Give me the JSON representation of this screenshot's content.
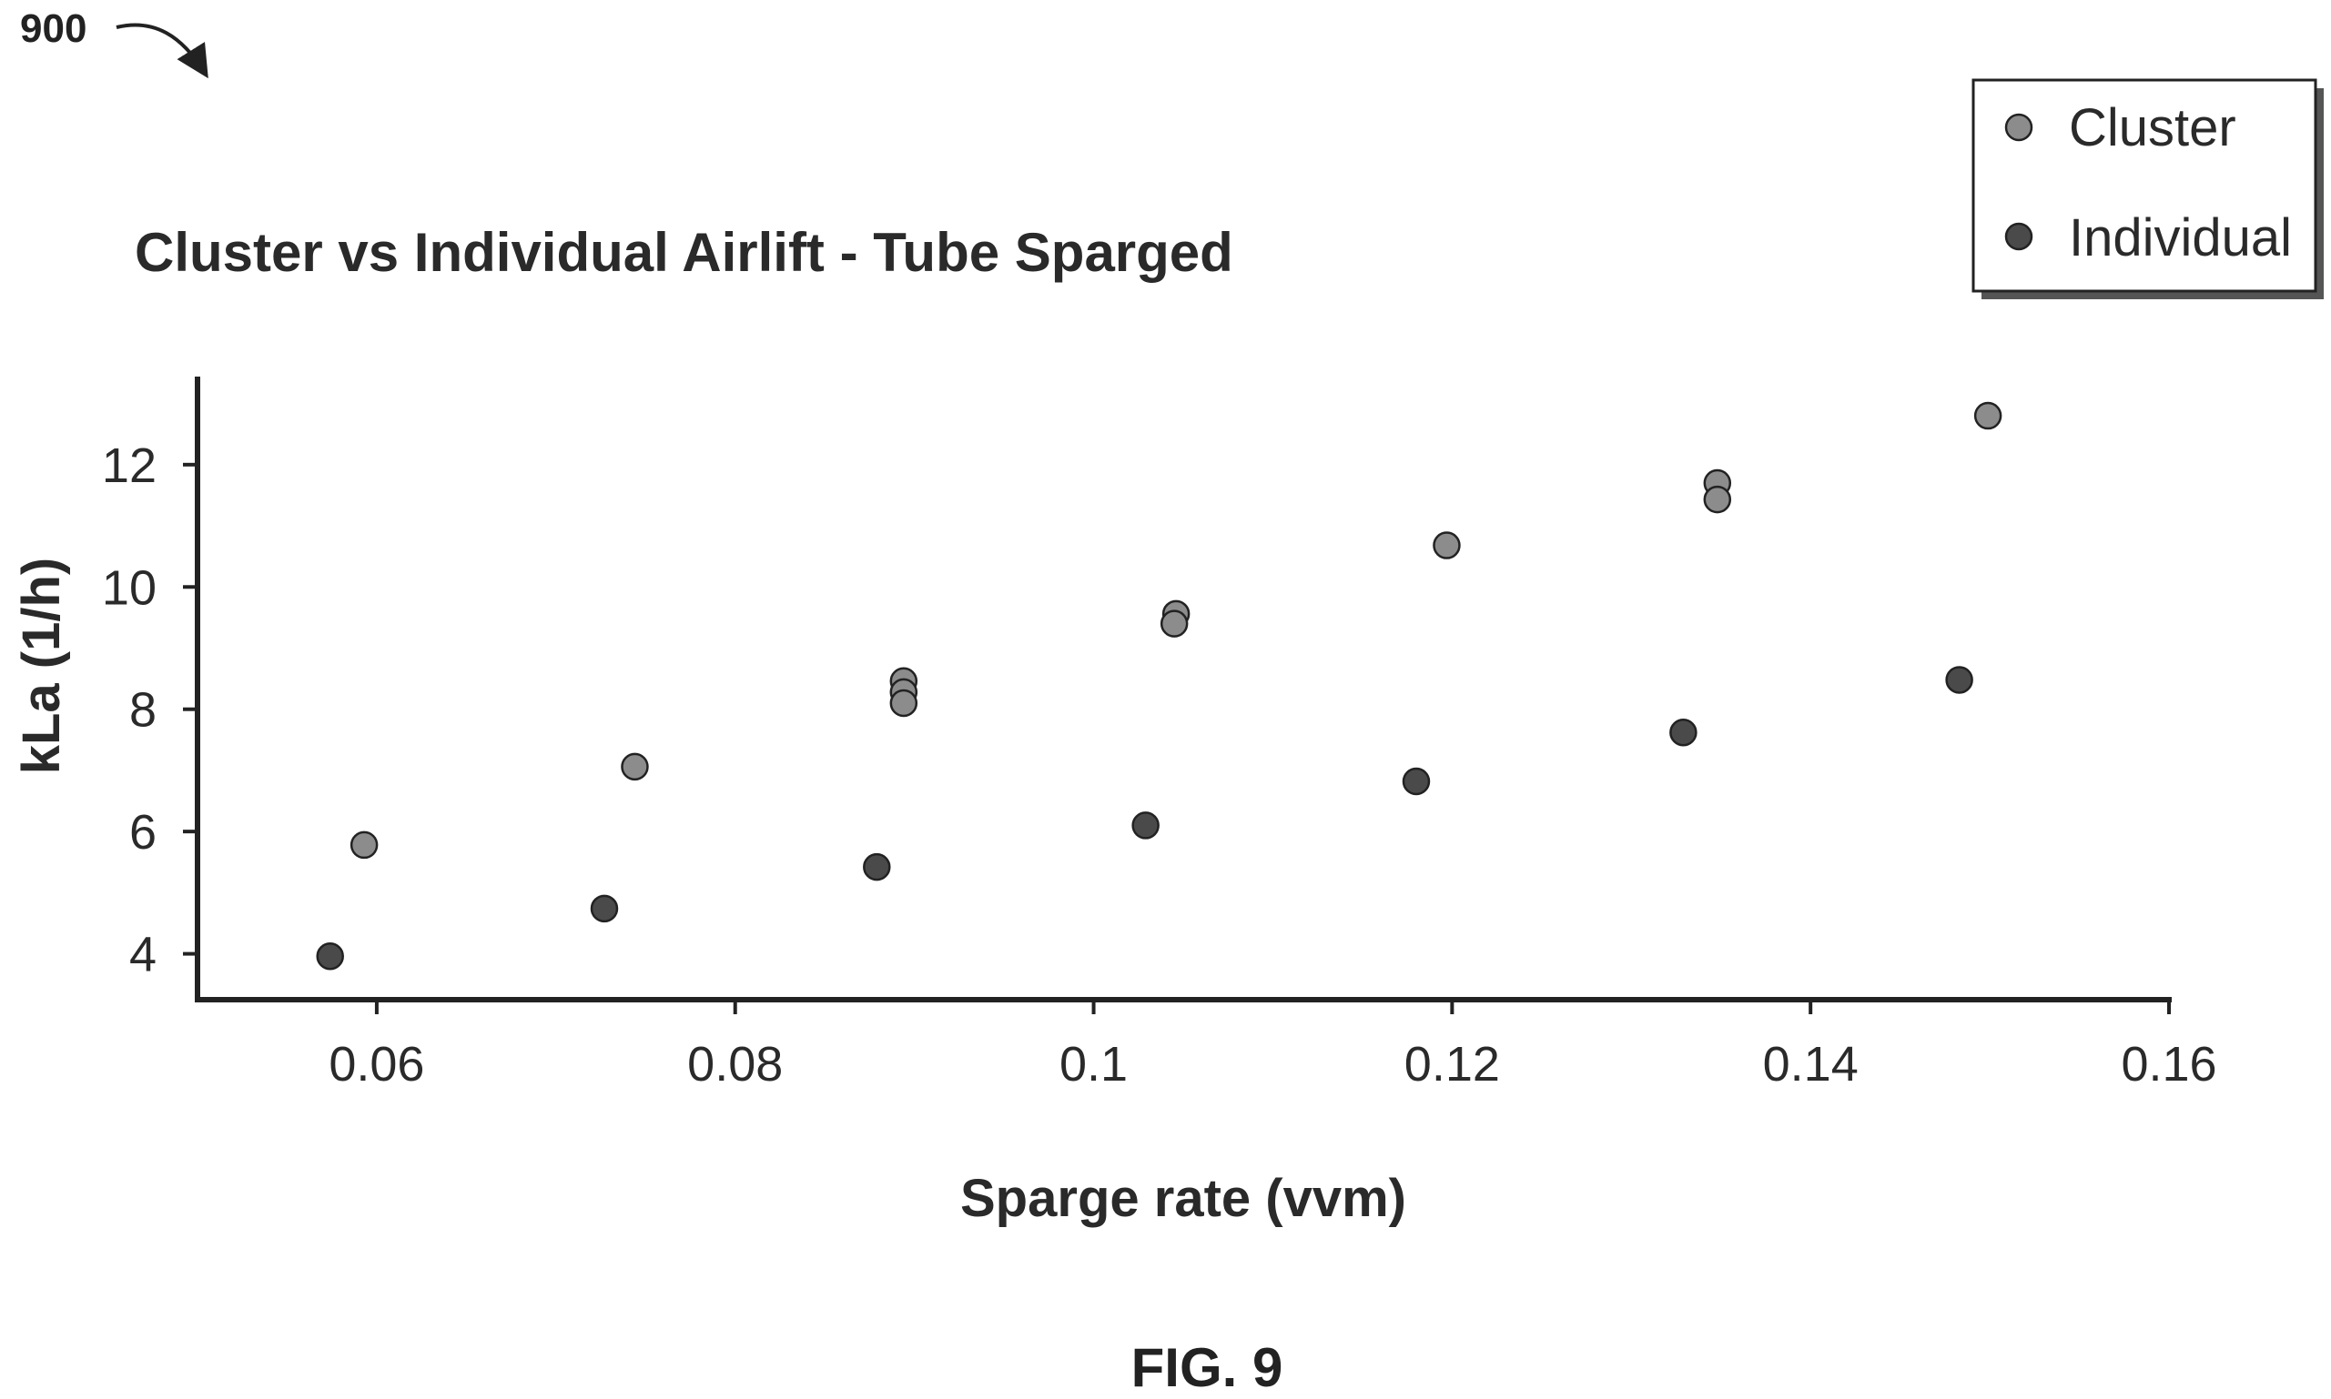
{
  "figure": {
    "ref_number": "900",
    "caption": "FIG. 9"
  },
  "chart_data": {
    "type": "scatter",
    "title": "Cluster vs Individual Airlift - Tube Sparged",
    "xlabel": "Sparge rate (vvm)",
    "ylabel": "kLa (1/h)",
    "xlim": [
      0.05,
      0.16
    ],
    "ylim": [
      3.25,
      13.5
    ],
    "x_ticks": [
      {
        "value": 0.06,
        "label": "0.06"
      },
      {
        "value": 0.08,
        "label": "0.08"
      },
      {
        "value": 0.1,
        "label": "0.1"
      },
      {
        "value": 0.12,
        "label": "0.12"
      },
      {
        "value": 0.14,
        "label": "0.14"
      },
      {
        "value": 0.16,
        "label": "0.16"
      }
    ],
    "y_ticks": [
      {
        "value": 4,
        "label": "4"
      },
      {
        "value": 6,
        "label": "6"
      },
      {
        "value": 8,
        "label": "8"
      },
      {
        "value": 10,
        "label": "10"
      },
      {
        "value": 12,
        "label": "12"
      }
    ],
    "grid": false,
    "legend_position": "top-right",
    "series": [
      {
        "name": "Cluster",
        "color": "#8c8c8c",
        "points": [
          {
            "x": 0.0593,
            "y": 5.78
          },
          {
            "x": 0.0744,
            "y": 7.06
          },
          {
            "x": 0.0894,
            "y": 8.46
          },
          {
            "x": 0.0894,
            "y": 8.28
          },
          {
            "x": 0.0894,
            "y": 8.1
          },
          {
            "x": 0.1046,
            "y": 9.56
          },
          {
            "x": 0.1045,
            "y": 9.4
          },
          {
            "x": 0.1197,
            "y": 10.68
          },
          {
            "x": 0.1348,
            "y": 11.7
          },
          {
            "x": 0.1348,
            "y": 11.43
          },
          {
            "x": 0.1499,
            "y": 12.8
          }
        ]
      },
      {
        "name": "Individual",
        "color": "#4a4a4a",
        "points": [
          {
            "x": 0.0574,
            "y": 3.96
          },
          {
            "x": 0.0727,
            "y": 4.74
          },
          {
            "x": 0.0879,
            "y": 5.42
          },
          {
            "x": 0.1029,
            "y": 6.1
          },
          {
            "x": 0.118,
            "y": 6.82
          },
          {
            "x": 0.1329,
            "y": 7.62
          },
          {
            "x": 0.1483,
            "y": 8.48
          }
        ]
      }
    ]
  }
}
